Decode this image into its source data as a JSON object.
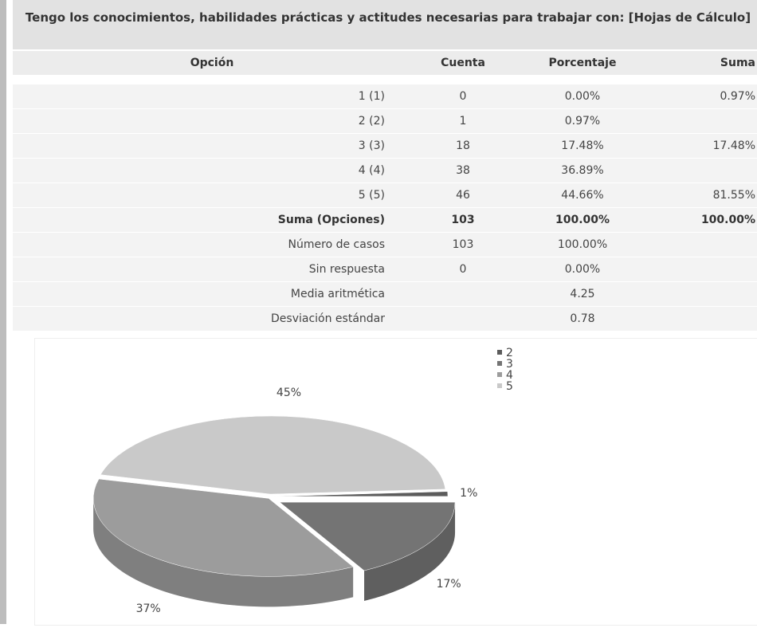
{
  "table": {
    "title": "Tengo los conocimientos, habilidades prácticas y actitudes necesarias para trabajar con: [Hojas de Cálculo]",
    "header": {
      "option": "Opción",
      "count": "Cuenta",
      "percent": "Porcentaje",
      "sum": "Suma"
    },
    "rows": [
      {
        "option": "1 (1)",
        "count": "0",
        "percent": "0.00%",
        "sum": "0.97%"
      },
      {
        "option": "2 (2)",
        "count": "1",
        "percent": "0.97%"
      },
      {
        "option": "3 (3)",
        "count": "18",
        "percent": "17.48%",
        "sum": "17.48%"
      },
      {
        "option": "4 (4)",
        "count": "38",
        "percent": "36.89%"
      },
      {
        "option": "5 (5)",
        "count": "46",
        "percent": "44.66%",
        "sum": "81.55%"
      },
      {
        "option": "Suma (Opciones)",
        "count": "103",
        "percent": "100.00%",
        "sum": "100.00%",
        "bold": true
      },
      {
        "option": "Número de casos",
        "count": "103",
        "percent": "100.00%"
      },
      {
        "option": "Sin respuesta",
        "count": "0",
        "percent": "0.00%"
      },
      {
        "option": "Media aritmética",
        "percent": "4.25"
      },
      {
        "option": "Desviación estándar",
        "percent": "0.78"
      }
    ]
  },
  "chart_data": {
    "type": "pie",
    "categories": [
      "2",
      "3",
      "4",
      "5"
    ],
    "values": [
      1,
      17,
      37,
      45
    ],
    "value_labels": [
      "1%",
      "17%",
      "37%",
      "45%"
    ],
    "colors": [
      "#5c5c5c",
      "#747474",
      "#9c9c9c",
      "#c9c9c9"
    ],
    "legend": "top-right"
  }
}
